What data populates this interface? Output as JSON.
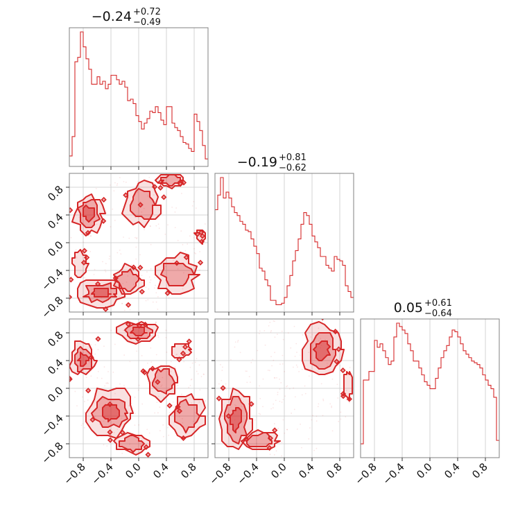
{
  "chart_data": {
    "type": "corner",
    "color": "#d62728",
    "axis_range": [
      -1.0,
      1.0
    ],
    "ticks": [
      -0.8,
      -0.4,
      0.0,
      0.4,
      0.8
    ],
    "tick_labels": [
      "−0.8",
      "−0.4",
      "0.0",
      "0.4",
      "0.8"
    ],
    "grid": true,
    "parameters": [
      {
        "title": {
          "median": "−0.24",
          "plus": "+0.72",
          "minus": "−0.49"
        },
        "hist_bin_width": 0.04,
        "hist_start": -1.0,
        "hist_counts": [
          0.07,
          0.2,
          0.7,
          0.73,
          0.9,
          0.8,
          0.72,
          0.65,
          0.55,
          0.55,
          0.6,
          0.55,
          0.57,
          0.52,
          0.55,
          0.61,
          0.61,
          0.58,
          0.55,
          0.57,
          0.53,
          0.44,
          0.45,
          0.42,
          0.34,
          0.3,
          0.25,
          0.29,
          0.32,
          0.37,
          0.36,
          0.4,
          0.36,
          0.31,
          0.28,
          0.4,
          0.4,
          0.29,
          0.26,
          0.24,
          0.2,
          0.16,
          0.15,
          0.12,
          0.1,
          0.35,
          0.3,
          0.24,
          0.14,
          0.05
        ]
      },
      {
        "title": {
          "median": "−0.19",
          "plus": "+0.81",
          "minus": "−0.62"
        },
        "hist_bin_width": 0.04,
        "hist_start": -1.0,
        "hist_counts": [
          0.7,
          0.8,
          0.92,
          0.78,
          0.82,
          0.78,
          0.72,
          0.68,
          0.66,
          0.62,
          0.6,
          0.56,
          0.55,
          0.5,
          0.45,
          0.4,
          0.3,
          0.28,
          0.22,
          0.18,
          0.08,
          0.08,
          0.05,
          0.05,
          0.06,
          0.1,
          0.18,
          0.25,
          0.35,
          0.42,
          0.5,
          0.6,
          0.68,
          0.66,
          0.6,
          0.52,
          0.48,
          0.44,
          0.38,
          0.38,
          0.32,
          0.3,
          0.28,
          0.38,
          0.36,
          0.35,
          0.32,
          0.18,
          0.14,
          0.1
        ]
      },
      {
        "title": {
          "median": "0.05",
          "plus": "+0.61",
          "minus": "−0.64"
        },
        "hist_bin_width": 0.04,
        "hist_start": -1.0,
        "hist_counts": [
          0.08,
          0.45,
          0.45,
          0.5,
          0.5,
          0.68,
          0.64,
          0.66,
          0.62,
          0.58,
          0.54,
          0.56,
          0.7,
          0.78,
          0.76,
          0.74,
          0.72,
          0.66,
          0.62,
          0.56,
          0.56,
          0.52,
          0.48,
          0.44,
          0.42,
          0.4,
          0.4,
          0.46,
          0.52,
          0.58,
          0.62,
          0.65,
          0.7,
          0.74,
          0.73,
          0.7,
          0.66,
          0.62,
          0.6,
          0.58,
          0.56,
          0.55,
          0.54,
          0.52,
          0.48,
          0.45,
          0.42,
          0.4,
          0.35,
          0.1
        ]
      }
    ],
    "pairs": [
      {
        "x_param": 0,
        "y_param": 1,
        "clusters": [
          {
            "cx": -0.72,
            "cy": 0.42,
            "rx": 0.22,
            "ry": 0.3,
            "level": 3
          },
          {
            "cx": -0.55,
            "cy": -0.72,
            "rx": 0.35,
            "ry": 0.2,
            "level": 3
          },
          {
            "cx": -0.15,
            "cy": -0.55,
            "rx": 0.22,
            "ry": 0.22,
            "level": 2
          },
          {
            "cx": 0.55,
            "cy": -0.45,
            "rx": 0.3,
            "ry": 0.28,
            "level": 2
          },
          {
            "cx": 0.05,
            "cy": 0.55,
            "rx": 0.25,
            "ry": 0.3,
            "level": 2
          },
          {
            "cx": 0.45,
            "cy": 0.9,
            "rx": 0.2,
            "ry": 0.1,
            "level": 2
          },
          {
            "cx": -0.85,
            "cy": -0.3,
            "rx": 0.1,
            "ry": 0.18,
            "level": 1
          },
          {
            "cx": 0.9,
            "cy": 0.1,
            "rx": 0.08,
            "ry": 0.1,
            "level": 1
          }
        ]
      },
      {
        "x_param": 0,
        "y_param": 2,
        "clusters": [
          {
            "cx": -0.8,
            "cy": 0.42,
            "rx": 0.18,
            "ry": 0.25,
            "level": 3
          },
          {
            "cx": 0.0,
            "cy": 0.82,
            "rx": 0.3,
            "ry": 0.15,
            "level": 3
          },
          {
            "cx": -0.4,
            "cy": -0.35,
            "rx": 0.35,
            "ry": 0.35,
            "level": 3
          },
          {
            "cx": 0.7,
            "cy": -0.4,
            "rx": 0.25,
            "ry": 0.3,
            "level": 2
          },
          {
            "cx": 0.35,
            "cy": 0.1,
            "rx": 0.22,
            "ry": 0.25,
            "level": 2
          },
          {
            "cx": -0.1,
            "cy": -0.8,
            "rx": 0.25,
            "ry": 0.14,
            "level": 2
          },
          {
            "cx": 0.6,
            "cy": 0.55,
            "rx": 0.15,
            "ry": 0.12,
            "level": 1
          }
        ]
      },
      {
        "x_param": 1,
        "y_param": 2,
        "clusters": [
          {
            "cx": 0.55,
            "cy": 0.55,
            "rx": 0.28,
            "ry": 0.38,
            "level": 3
          },
          {
            "cx": -0.7,
            "cy": -0.45,
            "rx": 0.25,
            "ry": 0.45,
            "level": 3
          },
          {
            "cx": -0.35,
            "cy": -0.75,
            "rx": 0.25,
            "ry": 0.15,
            "level": 2
          },
          {
            "cx": 0.92,
            "cy": 0.05,
            "rx": 0.07,
            "ry": 0.2,
            "level": 1
          }
        ]
      }
    ]
  }
}
